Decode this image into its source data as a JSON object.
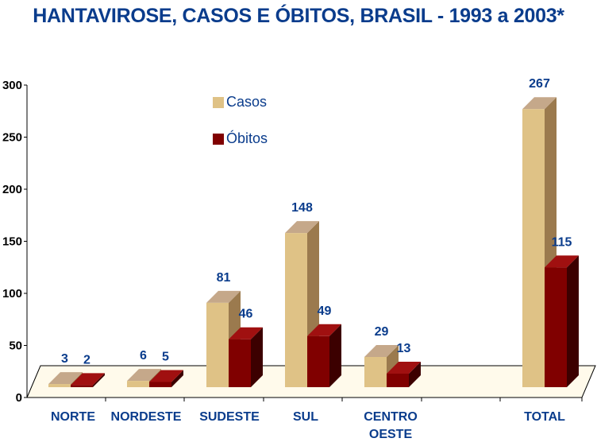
{
  "chart_data": {
    "type": "bar",
    "title": "HANTAVIROSE, CASOS E ÓBITOS, BRASIL - 1993 a 2003*",
    "categories": [
      [
        "NORTE"
      ],
      [
        "NORDESTE"
      ],
      [
        "SUDESTE"
      ],
      [
        "SUL"
      ],
      [
        "CENTRO",
        "OESTE"
      ],
      [
        "TOTAL"
      ]
    ],
    "series": [
      {
        "name": "Casos",
        "values": [
          3,
          6,
          81,
          148,
          29,
          267
        ],
        "color": "#dfc286",
        "side_color": "#9b7a4e",
        "top_color": "#c5a88a"
      },
      {
        "name": "Óbitos",
        "values": [
          2,
          5,
          46,
          49,
          13,
          115
        ],
        "color": "#800000",
        "side_color": "#3c0000",
        "top_color": "#a01010"
      }
    ],
    "ylim": [
      0,
      300
    ],
    "yticks": [
      0,
      50,
      100,
      150,
      200,
      250,
      300
    ],
    "xlabel": "",
    "ylabel": "",
    "legend_position": "top-center",
    "colors": {
      "title": "#0a3c8c",
      "labels": "#0a3c8c",
      "floor": "#fffaeb"
    }
  }
}
